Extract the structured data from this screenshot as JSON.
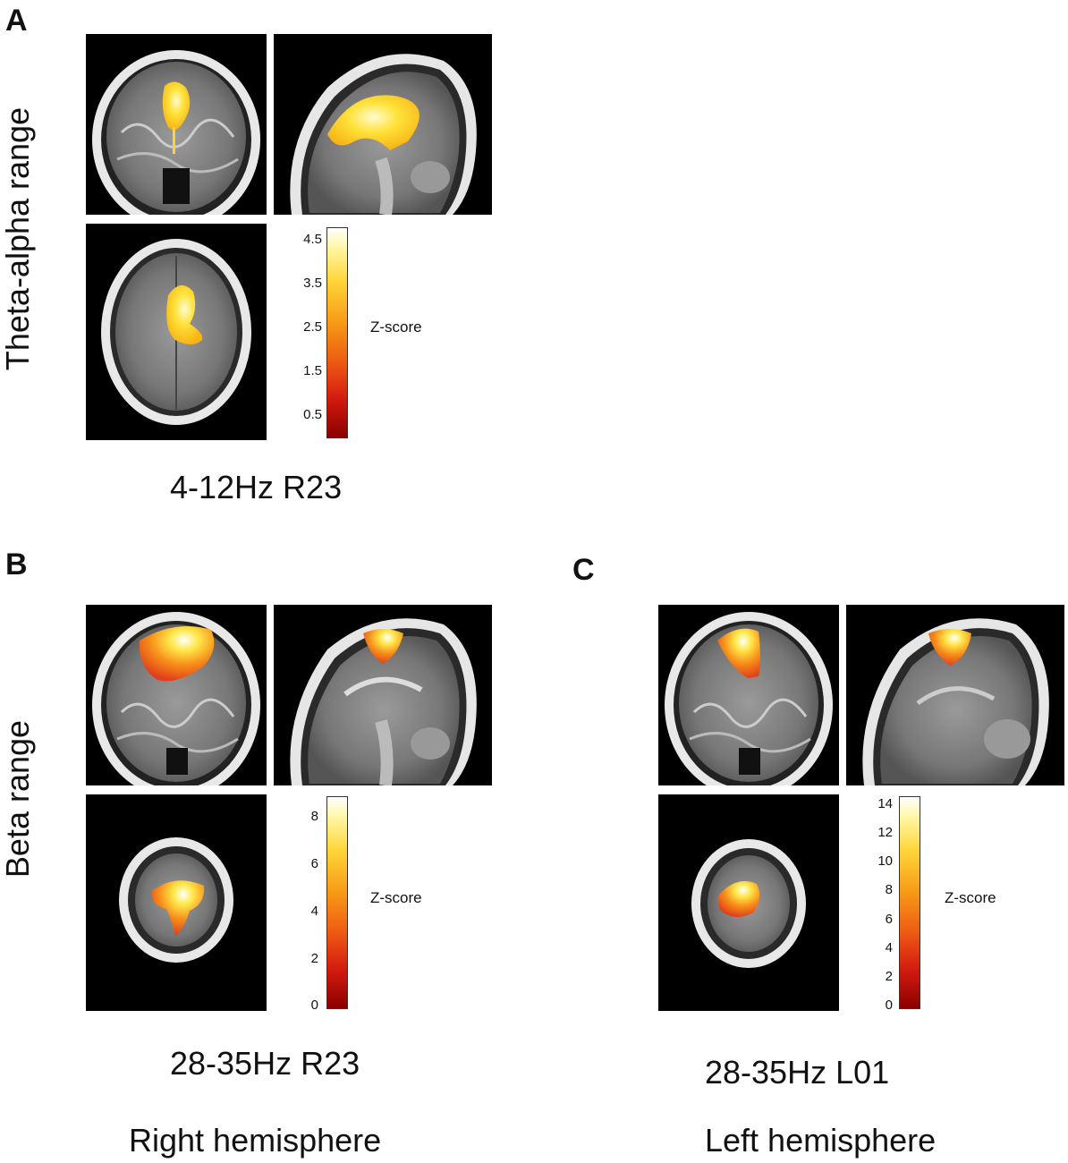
{
  "panels": {
    "A": {
      "letter": "A",
      "row_label": "Theta-alpha range",
      "caption": "4-12Hz R23",
      "colorbar": {
        "label": "Z-score",
        "ticks": [
          "4.5",
          "3.5",
          "2.5",
          "1.5",
          "0.5"
        ],
        "range": [
          0,
          4.8
        ]
      }
    },
    "B": {
      "letter": "B",
      "row_label": "Beta range",
      "caption": "28-35Hz R23",
      "subcaption": "Right hemisphere",
      "colorbar": {
        "label": "Z-score",
        "ticks": [
          "8",
          "6",
          "4",
          "2",
          "0"
        ],
        "range": [
          0,
          9
        ]
      }
    },
    "C": {
      "letter": "C",
      "caption": "28-35Hz L01",
      "subcaption": "Left hemisphere",
      "colorbar": {
        "label": "Z-score",
        "ticks": [
          "14",
          "12",
          "10",
          "8",
          "6",
          "4",
          "2",
          "0"
        ],
        "range": [
          0,
          14.5
        ]
      }
    }
  },
  "colors": {
    "hot_low": "#8a0000",
    "hot_mid": "#f79a16",
    "hot_high": "#ffffff",
    "background": "#000000"
  }
}
